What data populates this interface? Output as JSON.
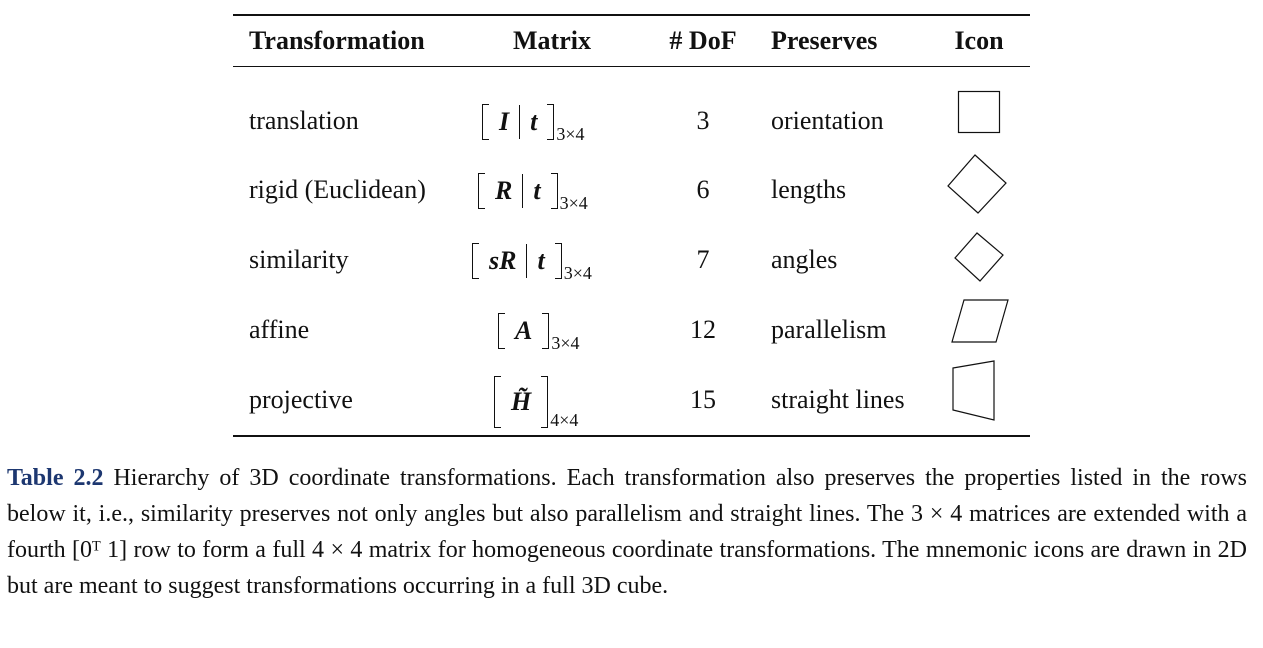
{
  "table": {
    "headers": {
      "transformation": "Transformation",
      "matrix": "Matrix",
      "dof": "# DoF",
      "preserves": "Preserves",
      "icon": "Icon"
    },
    "rows": [
      {
        "name": "translation",
        "matrix_left": "I",
        "matrix_right": "t",
        "size": "3×4",
        "dof": "3",
        "preserves": "orientation",
        "icon": "square-icon"
      },
      {
        "name": "rigid (Euclidean)",
        "matrix_left": "R",
        "matrix_right": "t",
        "size": "3×4",
        "dof": "6",
        "preserves": "lengths",
        "icon": "rotated-square-icon"
      },
      {
        "name": "similarity",
        "matrix_left": "sR",
        "matrix_right": "t",
        "size": "3×4",
        "dof": "7",
        "preserves": "angles",
        "icon": "small-rotated-square-icon"
      },
      {
        "name": "affine",
        "matrix_left": "A",
        "size": "3×4",
        "dof": "12",
        "preserves": "parallelism",
        "icon": "parallelogram-icon"
      },
      {
        "name": "projective",
        "matrix_left": "H̃",
        "size": "4×4",
        "dof": "15",
        "preserves": "straight lines",
        "icon": "trapezoid-icon"
      }
    ]
  },
  "caption": {
    "label": "Table 2.2",
    "text": "Hierarchy of 3D coordinate transformations. Each transformation also preserves the properties listed in the rows below it, i.e., similarity preserves not only angles but also parallelism and straight lines. The 3 × 4 matrices are extended with a fourth [0ᵀ 1] row to form a full 4 × 4 matrix for homogeneous coordinate transformations. The mnemonic icons are drawn in 2D but are meant to suggest transformations occurring in a full 3D cube."
  }
}
